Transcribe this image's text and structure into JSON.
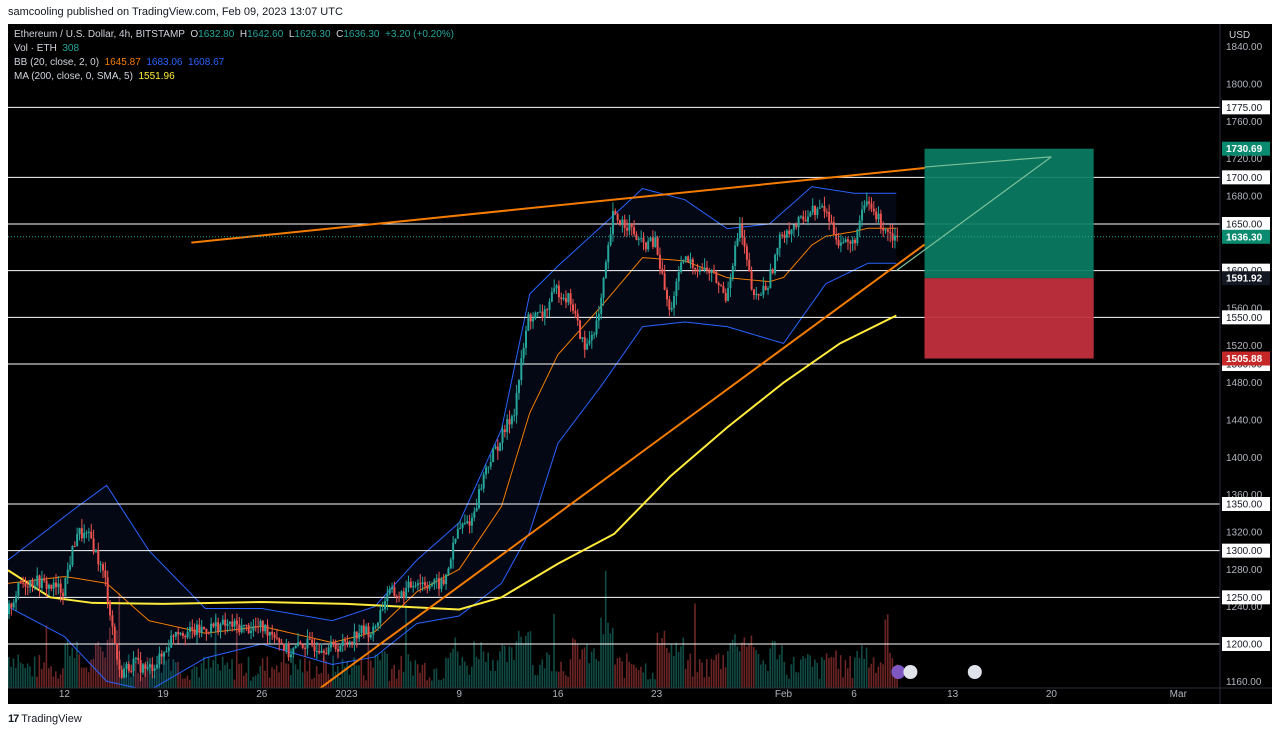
{
  "header": {
    "published_text": "samcooling published on TradingView.com, Feb 09, 2023 13:07 UTC"
  },
  "legend": {
    "symbol_line": "Ethereum / U.S. Dollar, 4h, BITSTAMP",
    "open_label": "O",
    "open": "1632.80",
    "high_label": "H",
    "high": "1642.60",
    "low_label": "L",
    "low": "1626.30",
    "close_label": "C",
    "close": "1636.30",
    "change": "+3.20 (+0.20%)",
    "vol_label": "Vol · ETH",
    "vol": "308",
    "bb_label": "BB (20, close, 2, 0)",
    "bb_mid": "1645.87",
    "bb_upper": "1683.06",
    "bb_lower": "1608.67",
    "ma_label": "MA (200, close, 0, SMA, 5)",
    "ma": "1551.96"
  },
  "footer": {
    "brand": "TradingView",
    "logo_mark": "17"
  },
  "colors": {
    "background": "#000000",
    "up": "#26a69a",
    "down": "#ef5350",
    "bb": "#2962ff",
    "bb_basis": "#f57c00",
    "ma": "#ffeb3b",
    "trendline": "#f57c00",
    "horizontal": "#ffffff",
    "profit_zone": "#0a7d64",
    "loss_zone": "#c1303d",
    "last_price": "#0a8a6f"
  },
  "chart_data": {
    "type": "candlestick",
    "title": "Ethereum / U.S. Dollar, 4h, BITSTAMP",
    "currency": "USD",
    "y_range": [
      1140,
      1860
    ],
    "y_ticks": [
      1160,
      1200,
      1240,
      1280,
      1320,
      1360,
      1400,
      1440,
      1480,
      1520,
      1560,
      1600,
      1640,
      1680,
      1720,
      1760,
      1800,
      1840
    ],
    "x_range": [
      "Dec 8",
      "Mar 3"
    ],
    "x_ticks": [
      {
        "label": "12",
        "date": "Dec 12"
      },
      {
        "label": "19",
        "date": "Dec 19"
      },
      {
        "label": "26",
        "date": "Dec 26"
      },
      {
        "label": "2023",
        "date": "Jan 1"
      },
      {
        "label": "9",
        "date": "Jan 9"
      },
      {
        "label": "16",
        "date": "Jan 16"
      },
      {
        "label": "23",
        "date": "Jan 23"
      },
      {
        "label": "Feb",
        "date": "Feb 1"
      },
      {
        "label": "6",
        "date": "Feb 6"
      },
      {
        "label": "13",
        "date": "Feb 13"
      },
      {
        "label": "20",
        "date": "Feb 20"
      },
      {
        "label": "Mar",
        "date": "Mar 1"
      }
    ],
    "price_path": [
      {
        "date": "Dec 8",
        "close": 1232
      },
      {
        "date": "Dec 9",
        "close": 1265
      },
      {
        "date": "Dec 10",
        "close": 1268
      },
      {
        "date": "Dec 11",
        "close": 1262
      },
      {
        "date": "Dec 12",
        "close": 1258
      },
      {
        "date": "Dec 13",
        "close": 1320
      },
      {
        "date": "Dec 14",
        "close": 1312
      },
      {
        "date": "Dec 15",
        "close": 1268
      },
      {
        "date": "Dec 16",
        "close": 1168
      },
      {
        "date": "Dec 17",
        "close": 1180
      },
      {
        "date": "Dec 18",
        "close": 1172
      },
      {
        "date": "Dec 19",
        "close": 1186
      },
      {
        "date": "Dec 20",
        "close": 1216
      },
      {
        "date": "Dec 21",
        "close": 1212
      },
      {
        "date": "Dec 22",
        "close": 1216
      },
      {
        "date": "Dec 23",
        "close": 1220
      },
      {
        "date": "Dec 24",
        "close": 1220
      },
      {
        "date": "Dec 25",
        "close": 1217
      },
      {
        "date": "Dec 26",
        "close": 1218
      },
      {
        "date": "Dec 27",
        "close": 1212
      },
      {
        "date": "Dec 28",
        "close": 1190
      },
      {
        "date": "Dec 29",
        "close": 1200
      },
      {
        "date": "Dec 30",
        "close": 1198
      },
      {
        "date": "Dec 31",
        "close": 1196
      },
      {
        "date": "Jan 1",
        "close": 1200
      },
      {
        "date": "Jan 2",
        "close": 1214
      },
      {
        "date": "Jan 3",
        "close": 1213
      },
      {
        "date": "Jan 4",
        "close": 1255
      },
      {
        "date": "Jan 5",
        "close": 1252
      },
      {
        "date": "Jan 6",
        "close": 1268
      },
      {
        "date": "Jan 7",
        "close": 1264
      },
      {
        "date": "Jan 8",
        "close": 1264
      },
      {
        "date": "Jan 9",
        "close": 1322
      },
      {
        "date": "Jan 10",
        "close": 1334
      },
      {
        "date": "Jan 11",
        "close": 1389
      },
      {
        "date": "Jan 12",
        "close": 1418
      },
      {
        "date": "Jan 13",
        "close": 1451
      },
      {
        "date": "Jan 14",
        "close": 1550
      },
      {
        "date": "Jan 15",
        "close": 1552
      },
      {
        "date": "Jan 16",
        "close": 1580
      },
      {
        "date": "Jan 17",
        "close": 1568
      },
      {
        "date": "Jan 18",
        "close": 1515
      },
      {
        "date": "Jan 19",
        "close": 1550
      },
      {
        "date": "Jan 20",
        "close": 1658
      },
      {
        "date": "Jan 21",
        "close": 1650
      },
      {
        "date": "Jan 22",
        "close": 1628
      },
      {
        "date": "Jan 23",
        "close": 1630
      },
      {
        "date": "Jan 24",
        "close": 1555
      },
      {
        "date": "Jan 25",
        "close": 1612
      },
      {
        "date": "Jan 26",
        "close": 1604
      },
      {
        "date": "Jan 27",
        "close": 1598
      },
      {
        "date": "Jan 28",
        "close": 1572
      },
      {
        "date": "Jan 29",
        "close": 1648
      },
      {
        "date": "Jan 30",
        "close": 1568
      },
      {
        "date": "Jan 31",
        "close": 1586
      },
      {
        "date": "Feb 1",
        "close": 1641
      },
      {
        "date": "Feb 2",
        "close": 1648
      },
      {
        "date": "Feb 3",
        "close": 1664
      },
      {
        "date": "Feb 4",
        "close": 1666
      },
      {
        "date": "Feb 5",
        "close": 1632
      },
      {
        "date": "Feb 6",
        "close": 1628
      },
      {
        "date": "Feb 7",
        "close": 1674
      },
      {
        "date": "Feb 8",
        "close": 1651
      },
      {
        "date": "Feb 9",
        "close": 1636.3
      }
    ],
    "ma200_path": [
      {
        "date": "Dec 8",
        "value": 1279
      },
      {
        "date": "Dec 11",
        "value": 1250
      },
      {
        "date": "Dec 14",
        "value": 1244
      },
      {
        "date": "Dec 19",
        "value": 1243
      },
      {
        "date": "Dec 26",
        "value": 1245
      },
      {
        "date": "Jan 1",
        "value": 1243
      },
      {
        "date": "Jan 9",
        "value": 1237
      },
      {
        "date": "Jan 12",
        "value": 1250
      },
      {
        "date": "Jan 16",
        "value": 1286
      },
      {
        "date": "Jan 20",
        "value": 1318
      },
      {
        "date": "Jan 24",
        "value": 1380
      },
      {
        "date": "Jan 28",
        "value": 1432
      },
      {
        "date": "Feb 1",
        "value": 1480
      },
      {
        "date": "Feb 5",
        "value": 1522
      },
      {
        "date": "Feb 9",
        "value": 1552
      }
    ],
    "bb_upper_path": [
      {
        "date": "Dec 8",
        "value": 1290
      },
      {
        "date": "Dec 13",
        "value": 1348
      },
      {
        "date": "Dec 15",
        "value": 1370
      },
      {
        "date": "Dec 18",
        "value": 1300
      },
      {
        "date": "Dec 22",
        "value": 1238
      },
      {
        "date": "Dec 26",
        "value": 1238
      },
      {
        "date": "Dec 31",
        "value": 1225
      },
      {
        "date": "Jan 3",
        "value": 1240
      },
      {
        "date": "Jan 6",
        "value": 1290
      },
      {
        "date": "Jan 9",
        "value": 1330
      },
      {
        "date": "Jan 12",
        "value": 1430
      },
      {
        "date": "Jan 14",
        "value": 1575
      },
      {
        "date": "Jan 16",
        "value": 1605
      },
      {
        "date": "Jan 20",
        "value": 1660
      },
      {
        "date": "Jan 22",
        "value": 1688
      },
      {
        "date": "Jan 25",
        "value": 1676
      },
      {
        "date": "Jan 28",
        "value": 1645
      },
      {
        "date": "Jan 31",
        "value": 1650
      },
      {
        "date": "Feb 3",
        "value": 1690
      },
      {
        "date": "Feb 6",
        "value": 1683
      },
      {
        "date": "Feb 9",
        "value": 1683
      }
    ],
    "bb_lower_path": [
      {
        "date": "Dec 8",
        "value": 1240
      },
      {
        "date": "Dec 12",
        "value": 1208
      },
      {
        "date": "Dec 15",
        "value": 1160
      },
      {
        "date": "Dec 18",
        "value": 1150
      },
      {
        "date": "Dec 22",
        "value": 1185
      },
      {
        "date": "Dec 26",
        "value": 1200
      },
      {
        "date": "Dec 31",
        "value": 1178
      },
      {
        "date": "Jan 3",
        "value": 1186
      },
      {
        "date": "Jan 6",
        "value": 1222
      },
      {
        "date": "Jan 9",
        "value": 1230
      },
      {
        "date": "Jan 12",
        "value": 1265
      },
      {
        "date": "Jan 14",
        "value": 1320
      },
      {
        "date": "Jan 16",
        "value": 1415
      },
      {
        "date": "Jan 19",
        "value": 1475
      },
      {
        "date": "Jan 22",
        "value": 1540
      },
      {
        "date": "Jan 25",
        "value": 1545
      },
      {
        "date": "Jan 28",
        "value": 1540
      },
      {
        "date": "Feb 1",
        "value": 1522
      },
      {
        "date": "Feb 4",
        "value": 1586
      },
      {
        "date": "Feb 7",
        "value": 1608
      },
      {
        "date": "Feb 9",
        "value": 1608
      }
    ],
    "horizontal_levels": [
      1775,
      1700,
      1650,
      1600,
      1550,
      1500,
      1350,
      1300,
      1250,
      1200
    ],
    "trendlines": [
      {
        "name": "upper",
        "from": {
          "date": "Dec 21",
          "price": 1630
        },
        "to": {
          "date": "Feb 11",
          "price": 1710
        }
      },
      {
        "name": "lower",
        "from": {
          "date": "Dec 29",
          "price": 1140
        },
        "to": {
          "date": "Feb 11",
          "price": 1628
        }
      }
    ],
    "position": {
      "entry": 1591.92,
      "target": 1730.69,
      "stop": 1505.88,
      "start": "Feb 11",
      "end": "Feb 23"
    },
    "projection_line": {
      "from": {
        "date": "Feb 9",
        "price": 1600
      },
      "to": {
        "date": "Feb 20",
        "price": 1722
      }
    },
    "last_price": 1636.3,
    "price_labels": [
      {
        "value": 1730.69,
        "text": "1730.69",
        "kind": "target"
      },
      {
        "value": 1636.3,
        "text": "1636.30",
        "kind": "last"
      },
      {
        "value": 1591.92,
        "text": "1591.92",
        "kind": "entry"
      },
      {
        "value": 1505.88,
        "text": "1505.88",
        "kind": "stop"
      }
    ],
    "level_labels": [
      "1775.00",
      "1700.00",
      "1650.00",
      "1600.00",
      "1550.00",
      "1500.00",
      "1350.00",
      "1300.00",
      "1250.00",
      "1200.00"
    ]
  }
}
